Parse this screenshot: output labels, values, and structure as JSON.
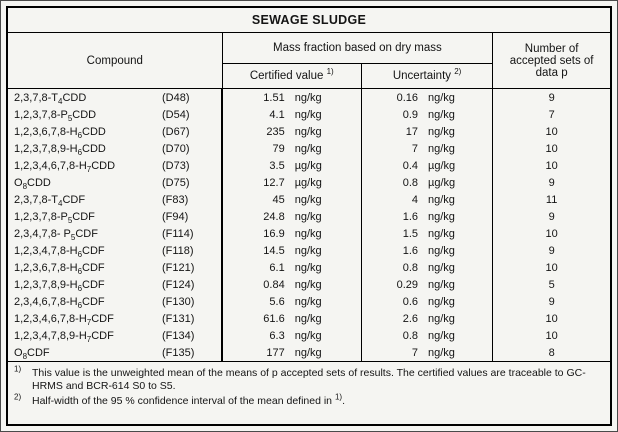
{
  "title": "SEWAGE SLUDGE",
  "header": {
    "compound": "Compound",
    "mass_fraction": "Mass fraction based on dry mass",
    "certified_value": "Certified value",
    "certified_note": "1)",
    "uncertainty": "Uncertainty",
    "uncertainty_note": "2)",
    "sets": "Number of accepted sets of data p"
  },
  "table": {
    "rows": [
      {
        "name_pre": "2,3,7,8-T",
        "name_sub": "4",
        "name_post": "CDD",
        "code": "(D48)",
        "certified": "1.51",
        "certified_unit": "ng/kg",
        "uncertainty": "0.16",
        "uncertainty_unit": "ng/kg",
        "sets": "9"
      },
      {
        "name_pre": "1,2,3,7,8-P",
        "name_sub": "5",
        "name_post": "CDD",
        "code": "(D54)",
        "certified": "4.1",
        "certified_unit": "ng/kg",
        "uncertainty": "0.9",
        "uncertainty_unit": "ng/kg",
        "sets": "7"
      },
      {
        "name_pre": "1,2,3,6,7,8-H",
        "name_sub": "6",
        "name_post": "CDD",
        "code": "(D67)",
        "certified": "235",
        "certified_unit": "ng/kg",
        "uncertainty": "17",
        "uncertainty_unit": "ng/kg",
        "sets": "10"
      },
      {
        "name_pre": "1,2,3,7,8,9-H",
        "name_sub": "6",
        "name_post": "CDD",
        "code": "(D70)",
        "certified": "79",
        "certified_unit": "ng/kg",
        "uncertainty": "7",
        "uncertainty_unit": "ng/kg",
        "sets": "10"
      },
      {
        "name_pre": "1,2,3,4,6,7,8-H",
        "name_sub": "7",
        "name_post": "CDD",
        "code": "(D73)",
        "certified": "3.5",
        "certified_unit": "µg/kg",
        "uncertainty": "0.4",
        "uncertainty_unit": "µg/kg",
        "sets": "10"
      },
      {
        "name_pre": "O",
        "name_sub": "8",
        "name_post": "CDD",
        "code": "(D75)",
        "certified": "12.7",
        "certified_unit": "µg/kg",
        "uncertainty": "0.8",
        "uncertainty_unit": "µg/kg",
        "sets": "9"
      },
      {
        "name_pre": "2,3,7,8-T",
        "name_sub": "4",
        "name_post": "CDF",
        "code": "(F83)",
        "certified": "45",
        "certified_unit": "ng/kg",
        "uncertainty": "4",
        "uncertainty_unit": "ng/kg",
        "sets": "11"
      },
      {
        "name_pre": "1,2,3,7,8-P",
        "name_sub": "5",
        "name_post": "CDF",
        "code": "(F94)",
        "certified": "24.8",
        "certified_unit": "ng/kg",
        "uncertainty": "1.6",
        "uncertainty_unit": "ng/kg",
        "sets": "9"
      },
      {
        "name_pre": "2,3,4,7,8- P",
        "name_sub": "5",
        "name_post": "CDF",
        "code": "(F114)",
        "certified": "16.9",
        "certified_unit": "ng/kg",
        "uncertainty": "1.5",
        "uncertainty_unit": "ng/kg",
        "sets": "10"
      },
      {
        "name_pre": "1,2,3,4,7,8-H",
        "name_sub": "6",
        "name_post": "CDF",
        "code": "(F118)",
        "certified": "14.5",
        "certified_unit": "ng/kg",
        "uncertainty": "1.6",
        "uncertainty_unit": "ng/kg",
        "sets": "9"
      },
      {
        "name_pre": "1,2,3,6,7,8-H",
        "name_sub": "6",
        "name_post": "CDF",
        "code": "(F121)",
        "certified": "6.1",
        "certified_unit": "ng/kg",
        "uncertainty": "0.8",
        "uncertainty_unit": "ng/kg",
        "sets": "10"
      },
      {
        "name_pre": "1,2,3,7,8,9-H",
        "name_sub": "6",
        "name_post": "CDF",
        "code": "(F124)",
        "certified": "0.84",
        "certified_unit": "ng/kg",
        "uncertainty": "0.29",
        "uncertainty_unit": "ng/kg",
        "sets": "5"
      },
      {
        "name_pre": "2,3,4,6,7,8-H",
        "name_sub": "6",
        "name_post": "CDF",
        "code": "(F130)",
        "certified": "5.6",
        "certified_unit": "ng/kg",
        "uncertainty": "0.6",
        "uncertainty_unit": "ng/kg",
        "sets": "9"
      },
      {
        "name_pre": "1,2,3,4,6,7,8-H",
        "name_sub": "7",
        "name_post": "CDF",
        "code": "(F131)",
        "certified": "61.6",
        "certified_unit": "ng/kg",
        "uncertainty": "2.6",
        "uncertainty_unit": "ng/kg",
        "sets": "10"
      },
      {
        "name_pre": "1,2,3,4,7,8,9-H",
        "name_sub": "7",
        "name_post": "CDF",
        "code": "(F134)",
        "certified": "6.3",
        "certified_unit": "ng/kg",
        "uncertainty": "0.8",
        "uncertainty_unit": "ng/kg",
        "sets": "10"
      },
      {
        "name_pre": "O",
        "name_sub": "8",
        "name_post": "CDF",
        "code": "(F135)",
        "certified": "177",
        "certified_unit": "ng/kg",
        "uncertainty": "7",
        "uncertainty_unit": "ng/kg",
        "sets": "8"
      }
    ]
  },
  "footnotes": [
    {
      "marker": "1)",
      "text": "This value is the unweighted mean of the means of p accepted sets of results. The certified values are traceable to GC-HRMS and BCR-614 S0 to S5."
    },
    {
      "marker": "2)",
      "text": "Half-width of the 95 % confidence interval of the mean defined in ",
      "ref": "1)",
      "tail": "."
    }
  ]
}
